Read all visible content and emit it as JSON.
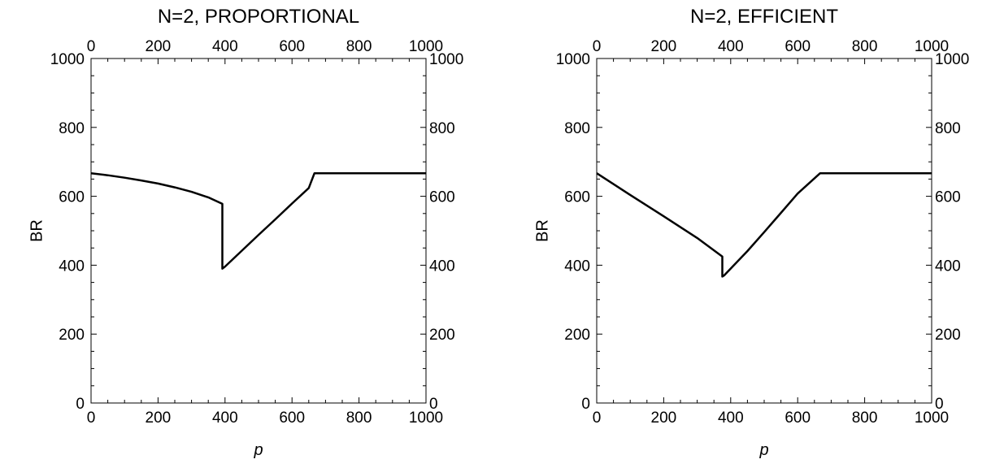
{
  "chart_data": [
    {
      "type": "line",
      "title": "N=2, PROPORTIONAL",
      "xlabel": "p",
      "ylabel": "BR",
      "xlim": [
        0,
        1000
      ],
      "ylim": [
        0,
        1000
      ],
      "xticks": [
        0,
        200,
        400,
        600,
        800,
        1000
      ],
      "yticks": [
        0,
        200,
        400,
        600,
        800,
        1000
      ],
      "series": [
        {
          "x": [
            0,
            50,
            100,
            150,
            200,
            250,
            300,
            350,
            392,
            392,
            400,
            450,
            500,
            550,
            600,
            650,
            667,
            700,
            800,
            900,
            1000
          ],
          "values": [
            667,
            661,
            654,
            646,
            637,
            626,
            613,
            597,
            578,
            390,
            396,
            442,
            488,
            533,
            579,
            624,
            667,
            667,
            667,
            667,
            667
          ]
        }
      ]
    },
    {
      "type": "line",
      "title": "N=2, EFFICIENT",
      "xlabel": "p",
      "ylabel": "BR",
      "xlim": [
        0,
        1000
      ],
      "ylim": [
        0,
        1000
      ],
      "xticks": [
        0,
        200,
        400,
        600,
        800,
        1000
      ],
      "yticks": [
        0,
        200,
        400,
        600,
        800,
        1000
      ],
      "series": [
        {
          "x": [
            0,
            100,
            200,
            300,
            375,
            375,
            380,
            450,
            500,
            550,
            600,
            667,
            700,
            800,
            900,
            1000
          ],
          "values": [
            667,
            604,
            542,
            479,
            425,
            367,
            370,
            441,
            496,
            552,
            608,
            667,
            667,
            667,
            667,
            667
          ]
        }
      ]
    }
  ]
}
